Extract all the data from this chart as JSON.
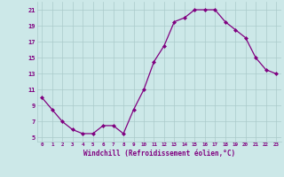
{
  "x": [
    0,
    1,
    2,
    3,
    4,
    5,
    6,
    7,
    8,
    9,
    10,
    11,
    12,
    13,
    14,
    15,
    16,
    17,
    18,
    19,
    20,
    21,
    22,
    23
  ],
  "y": [
    10.0,
    8.5,
    7.0,
    6.0,
    5.5,
    5.5,
    6.5,
    6.5,
    5.5,
    8.5,
    11.0,
    14.5,
    16.5,
    19.5,
    20.0,
    21.0,
    21.0,
    21.0,
    19.5,
    18.5,
    17.5,
    15.0,
    13.5,
    13.0
  ],
  "xlabel": "Windchill (Refroidissement éolien,°C)",
  "ylim": [
    4.5,
    22
  ],
  "yticks": [
    5,
    7,
    9,
    11,
    13,
    15,
    17,
    19,
    21
  ],
  "xticks": [
    0,
    1,
    2,
    3,
    4,
    5,
    6,
    7,
    8,
    9,
    10,
    11,
    12,
    13,
    14,
    15,
    16,
    17,
    18,
    19,
    20,
    21,
    22,
    23
  ],
  "line_color": "#800080",
  "marker_color": "#800080",
  "bg_color": "#cce8e8",
  "grid_color": "#aacaca",
  "label_color": "#800080"
}
